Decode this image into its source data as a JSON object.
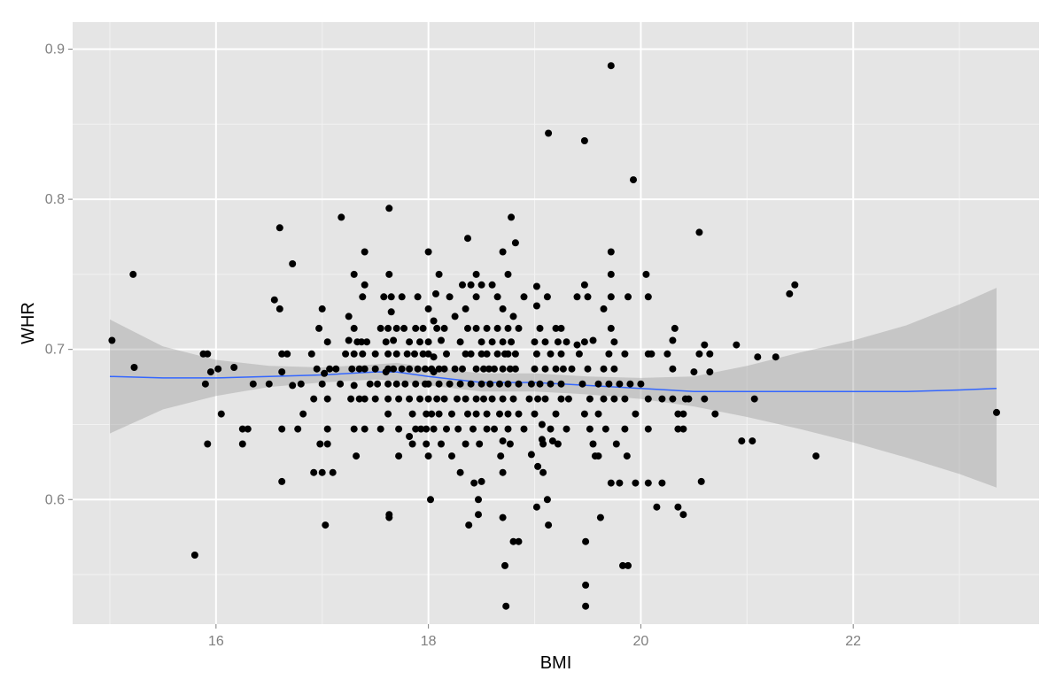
{
  "chart_data": {
    "type": "scatter",
    "title": "",
    "xlabel": "BMI",
    "ylabel": "WHR",
    "xlim": [
      14.65,
      23.75
    ],
    "ylim": [
      0.517,
      0.918
    ],
    "x_ticks": [
      16,
      18,
      20,
      22
    ],
    "x_tick_labels": [
      "16",
      "18",
      "20",
      "22"
    ],
    "y_ticks": [
      0.6,
      0.7,
      0.8,
      0.9
    ],
    "y_tick_labels": [
      "0.6",
      "0.7",
      "0.8",
      "0.9"
    ],
    "grid": true,
    "legend": "none",
    "colors": {
      "panel_background": "#e5e5e5",
      "grid_major": "#ffffff",
      "grid_minor": "#f2f2f2",
      "points": "#000000",
      "smooth_line": "#3366ff",
      "confidence_band": "#999999"
    },
    "smooth": {
      "x": [
        15.0,
        15.5,
        16.0,
        16.5,
        17.0,
        17.5,
        17.7,
        18.0,
        18.5,
        19.0,
        19.5,
        20.0,
        20.5,
        21.0,
        21.5,
        22.0,
        22.5,
        23.0,
        23.35
      ],
      "y": [
        0.682,
        0.681,
        0.681,
        0.682,
        0.683,
        0.685,
        0.685,
        0.682,
        0.678,
        0.678,
        0.676,
        0.674,
        0.672,
        0.672,
        0.672,
        0.672,
        0.672,
        0.673,
        0.674
      ],
      "lower": [
        0.644,
        0.66,
        0.669,
        0.675,
        0.678,
        0.68,
        0.679,
        0.676,
        0.672,
        0.672,
        0.67,
        0.667,
        0.662,
        0.655,
        0.647,
        0.638,
        0.628,
        0.617,
        0.608
      ],
      "upper": [
        0.72,
        0.702,
        0.693,
        0.689,
        0.688,
        0.69,
        0.691,
        0.688,
        0.684,
        0.684,
        0.682,
        0.681,
        0.682,
        0.689,
        0.698,
        0.706,
        0.716,
        0.73,
        0.741
      ]
    },
    "points": [
      [
        15.02,
        0.706
      ],
      [
        15.22,
        0.75
      ],
      [
        15.23,
        0.688
      ],
      [
        15.8,
        0.563
      ],
      [
        15.88,
        0.697
      ],
      [
        15.9,
        0.677
      ],
      [
        15.92,
        0.697
      ],
      [
        15.92,
        0.637
      ],
      [
        15.95,
        0.685
      ],
      [
        16.02,
        0.687
      ],
      [
        16.05,
        0.657
      ],
      [
        16.17,
        0.688
      ],
      [
        16.25,
        0.647
      ],
      [
        16.25,
        0.637
      ],
      [
        16.3,
        0.647
      ],
      [
        16.35,
        0.677
      ],
      [
        16.5,
        0.677
      ],
      [
        16.55,
        0.733
      ],
      [
        16.6,
        0.781
      ],
      [
        16.6,
        0.727
      ],
      [
        16.62,
        0.697
      ],
      [
        16.62,
        0.685
      ],
      [
        16.62,
        0.647
      ],
      [
        16.62,
        0.612
      ],
      [
        16.67,
        0.697
      ],
      [
        16.72,
        0.757
      ],
      [
        16.72,
        0.676
      ],
      [
        16.77,
        0.647
      ],
      [
        16.8,
        0.677
      ],
      [
        16.82,
        0.657
      ],
      [
        16.9,
        0.697
      ],
      [
        16.92,
        0.667
      ],
      [
        16.92,
        0.618
      ],
      [
        16.95,
        0.687
      ],
      [
        16.97,
        0.714
      ],
      [
        16.98,
        0.637
      ],
      [
        17.0,
        0.727
      ],
      [
        17.0,
        0.677
      ],
      [
        17.0,
        0.618
      ],
      [
        17.02,
        0.684
      ],
      [
        17.03,
        0.583
      ],
      [
        17.05,
        0.705
      ],
      [
        17.05,
        0.667
      ],
      [
        17.05,
        0.647
      ],
      [
        17.05,
        0.637
      ],
      [
        17.07,
        0.687
      ],
      [
        17.1,
        0.618
      ],
      [
        17.13,
        0.687
      ],
      [
        17.17,
        0.677
      ],
      [
        17.18,
        0.788
      ],
      [
        17.22,
        0.697
      ],
      [
        17.25,
        0.722
      ],
      [
        17.25,
        0.706
      ],
      [
        17.27,
        0.667
      ],
      [
        17.28,
        0.687
      ],
      [
        17.3,
        0.75
      ],
      [
        17.3,
        0.714
      ],
      [
        17.3,
        0.697
      ],
      [
        17.3,
        0.676
      ],
      [
        17.3,
        0.647
      ],
      [
        17.32,
        0.629
      ],
      [
        17.33,
        0.705
      ],
      [
        17.35,
        0.687
      ],
      [
        17.35,
        0.667
      ],
      [
        17.37,
        0.705
      ],
      [
        17.38,
        0.735
      ],
      [
        17.38,
        0.697
      ],
      [
        17.4,
        0.765
      ],
      [
        17.4,
        0.743
      ],
      [
        17.4,
        0.687
      ],
      [
        17.4,
        0.667
      ],
      [
        17.4,
        0.647
      ],
      [
        17.42,
        0.705
      ],
      [
        17.45,
        0.677
      ],
      [
        17.5,
        0.697
      ],
      [
        17.5,
        0.687
      ],
      [
        17.5,
        0.667
      ],
      [
        17.52,
        0.677
      ],
      [
        17.55,
        0.714
      ],
      [
        17.55,
        0.647
      ],
      [
        17.58,
        0.735
      ],
      [
        17.6,
        0.705
      ],
      [
        17.6,
        0.685
      ],
      [
        17.62,
        0.714
      ],
      [
        17.62,
        0.697
      ],
      [
        17.62,
        0.687
      ],
      [
        17.62,
        0.677
      ],
      [
        17.62,
        0.667
      ],
      [
        17.62,
        0.657
      ],
      [
        17.63,
        0.794
      ],
      [
        17.63,
        0.75
      ],
      [
        17.63,
        0.59
      ],
      [
        17.63,
        0.588
      ],
      [
        17.65,
        0.735
      ],
      [
        17.65,
        0.725
      ],
      [
        17.67,
        0.706
      ],
      [
        17.67,
        0.687
      ],
      [
        17.7,
        0.714
      ],
      [
        17.7,
        0.697
      ],
      [
        17.7,
        0.677
      ],
      [
        17.72,
        0.667
      ],
      [
        17.72,
        0.647
      ],
      [
        17.72,
        0.629
      ],
      [
        17.75,
        0.735
      ],
      [
        17.75,
        0.687
      ],
      [
        17.77,
        0.714
      ],
      [
        17.78,
        0.677
      ],
      [
        17.8,
        0.697
      ],
      [
        17.82,
        0.705
      ],
      [
        17.82,
        0.687
      ],
      [
        17.82,
        0.667
      ],
      [
        17.82,
        0.642
      ],
      [
        17.85,
        0.637
      ],
      [
        17.85,
        0.657
      ],
      [
        17.87,
        0.697
      ],
      [
        17.88,
        0.714
      ],
      [
        17.88,
        0.677
      ],
      [
        17.88,
        0.647
      ],
      [
        17.9,
        0.735
      ],
      [
        17.9,
        0.687
      ],
      [
        17.92,
        0.667
      ],
      [
        17.92,
        0.705
      ],
      [
        17.93,
        0.647
      ],
      [
        17.95,
        0.714
      ],
      [
        17.95,
        0.697
      ],
      [
        17.97,
        0.687
      ],
      [
        17.97,
        0.677
      ],
      [
        17.98,
        0.657
      ],
      [
        17.98,
        0.647
      ],
      [
        17.98,
        0.637
      ],
      [
        18.0,
        0.765
      ],
      [
        18.0,
        0.727
      ],
      [
        18.0,
        0.705
      ],
      [
        18.0,
        0.697
      ],
      [
        18.0,
        0.677
      ],
      [
        18.0,
        0.667
      ],
      [
        18.0,
        0.629
      ],
      [
        18.02,
        0.6
      ],
      [
        18.03,
        0.687
      ],
      [
        18.03,
        0.657
      ],
      [
        18.05,
        0.719
      ],
      [
        18.05,
        0.695
      ],
      [
        18.05,
        0.685
      ],
      [
        18.05,
        0.647
      ],
      [
        18.07,
        0.737
      ],
      [
        18.08,
        0.714
      ],
      [
        18.08,
        0.667
      ],
      [
        18.1,
        0.75
      ],
      [
        18.1,
        0.687
      ],
      [
        18.1,
        0.677
      ],
      [
        18.1,
        0.657
      ],
      [
        18.12,
        0.706
      ],
      [
        18.12,
        0.637
      ],
      [
        18.15,
        0.714
      ],
      [
        18.15,
        0.687
      ],
      [
        18.15,
        0.667
      ],
      [
        18.17,
        0.697
      ],
      [
        18.17,
        0.647
      ],
      [
        18.2,
        0.735
      ],
      [
        18.2,
        0.677
      ],
      [
        18.22,
        0.657
      ],
      [
        18.22,
        0.629
      ],
      [
        18.25,
        0.722
      ],
      [
        18.25,
        0.687
      ],
      [
        18.27,
        0.667
      ],
      [
        18.28,
        0.647
      ],
      [
        18.3,
        0.705
      ],
      [
        18.3,
        0.677
      ],
      [
        18.3,
        0.618
      ],
      [
        18.32,
        0.743
      ],
      [
        18.32,
        0.687
      ],
      [
        18.35,
        0.727
      ],
      [
        18.35,
        0.697
      ],
      [
        18.35,
        0.667
      ],
      [
        18.35,
        0.637
      ],
      [
        18.37,
        0.774
      ],
      [
        18.37,
        0.714
      ],
      [
        18.37,
        0.657
      ],
      [
        18.38,
        0.583
      ],
      [
        18.4,
        0.743
      ],
      [
        18.4,
        0.697
      ],
      [
        18.4,
        0.677
      ],
      [
        18.42,
        0.647
      ],
      [
        18.43,
        0.611
      ],
      [
        18.45,
        0.75
      ],
      [
        18.45,
        0.735
      ],
      [
        18.45,
        0.714
      ],
      [
        18.45,
        0.687
      ],
      [
        18.45,
        0.667
      ],
      [
        18.45,
        0.657
      ],
      [
        18.47,
        0.59
      ],
      [
        18.47,
        0.6
      ],
      [
        18.48,
        0.637
      ],
      [
        18.5,
        0.743
      ],
      [
        18.5,
        0.705
      ],
      [
        18.5,
        0.697
      ],
      [
        18.5,
        0.677
      ],
      [
        18.5,
        0.612
      ],
      [
        18.52,
        0.687
      ],
      [
        18.52,
        0.667
      ],
      [
        18.55,
        0.714
      ],
      [
        18.55,
        0.697
      ],
      [
        18.55,
        0.657
      ],
      [
        18.55,
        0.647
      ],
      [
        18.57,
        0.687
      ],
      [
        18.58,
        0.677
      ],
      [
        18.6,
        0.743
      ],
      [
        18.6,
        0.705
      ],
      [
        18.6,
        0.667
      ],
      [
        18.62,
        0.687
      ],
      [
        18.62,
        0.647
      ],
      [
        18.65,
        0.735
      ],
      [
        18.65,
        0.714
      ],
      [
        18.65,
        0.697
      ],
      [
        18.67,
        0.677
      ],
      [
        18.67,
        0.657
      ],
      [
        18.68,
        0.629
      ],
      [
        18.7,
        0.765
      ],
      [
        18.7,
        0.727
      ],
      [
        18.7,
        0.705
      ],
      [
        18.7,
        0.687
      ],
      [
        18.7,
        0.667
      ],
      [
        18.7,
        0.639
      ],
      [
        18.7,
        0.618
      ],
      [
        18.7,
        0.588
      ],
      [
        18.72,
        0.556
      ],
      [
        18.72,
        0.697
      ],
      [
        18.73,
        0.529
      ],
      [
        18.75,
        0.75
      ],
      [
        18.75,
        0.714
      ],
      [
        18.75,
        0.697
      ],
      [
        18.75,
        0.677
      ],
      [
        18.75,
        0.657
      ],
      [
        18.75,
        0.647
      ],
      [
        18.77,
        0.687
      ],
      [
        18.77,
        0.637
      ],
      [
        18.78,
        0.788
      ],
      [
        18.78,
        0.705
      ],
      [
        18.8,
        0.722
      ],
      [
        18.8,
        0.667
      ],
      [
        18.8,
        0.572
      ],
      [
        18.82,
        0.771
      ],
      [
        18.82,
        0.697
      ],
      [
        18.82,
        0.687
      ],
      [
        18.85,
        0.572
      ],
      [
        18.85,
        0.714
      ],
      [
        18.85,
        0.677
      ],
      [
        18.85,
        0.657
      ],
      [
        18.9,
        0.735
      ],
      [
        18.9,
        0.647
      ],
      [
        18.95,
        0.667
      ],
      [
        18.97,
        0.63
      ],
      [
        18.97,
        0.677
      ],
      [
        19.0,
        0.705
      ],
      [
        19.0,
        0.687
      ],
      [
        19.0,
        0.657
      ],
      [
        19.02,
        0.742
      ],
      [
        19.02,
        0.729
      ],
      [
        19.02,
        0.697
      ],
      [
        19.02,
        0.595
      ],
      [
        19.03,
        0.667
      ],
      [
        19.03,
        0.622
      ],
      [
        19.05,
        0.714
      ],
      [
        19.05,
        0.677
      ],
      [
        19.07,
        0.65
      ],
      [
        19.07,
        0.64
      ],
      [
        19.08,
        0.637
      ],
      [
        19.08,
        0.618
      ],
      [
        19.1,
        0.705
      ],
      [
        19.1,
        0.687
      ],
      [
        19.1,
        0.667
      ],
      [
        19.12,
        0.735
      ],
      [
        19.12,
        0.6
      ],
      [
        19.13,
        0.844
      ],
      [
        19.13,
        0.583
      ],
      [
        19.15,
        0.697
      ],
      [
        19.15,
        0.677
      ],
      [
        19.15,
        0.647
      ],
      [
        19.17,
        0.639
      ],
      [
        19.2,
        0.714
      ],
      [
        19.2,
        0.687
      ],
      [
        19.2,
        0.657
      ],
      [
        19.22,
        0.705
      ],
      [
        19.22,
        0.637
      ],
      [
        19.25,
        0.714
      ],
      [
        19.25,
        0.697
      ],
      [
        19.25,
        0.677
      ],
      [
        19.25,
        0.667
      ],
      [
        19.27,
        0.687
      ],
      [
        19.3,
        0.705
      ],
      [
        19.3,
        0.647
      ],
      [
        19.32,
        0.667
      ],
      [
        19.35,
        0.687
      ],
      [
        19.4,
        0.735
      ],
      [
        19.4,
        0.703
      ],
      [
        19.42,
        0.697
      ],
      [
        19.45,
        0.677
      ],
      [
        19.47,
        0.839
      ],
      [
        19.47,
        0.743
      ],
      [
        19.47,
        0.705
      ],
      [
        19.47,
        0.657
      ],
      [
        19.48,
        0.543
      ],
      [
        19.48,
        0.529
      ],
      [
        19.48,
        0.572
      ],
      [
        19.5,
        0.735
      ],
      [
        19.5,
        0.687
      ],
      [
        19.52,
        0.667
      ],
      [
        19.52,
        0.647
      ],
      [
        19.55,
        0.706
      ],
      [
        19.55,
        0.637
      ],
      [
        19.57,
        0.629
      ],
      [
        19.6,
        0.677
      ],
      [
        19.6,
        0.657
      ],
      [
        19.6,
        0.629
      ],
      [
        19.62,
        0.588
      ],
      [
        19.65,
        0.727
      ],
      [
        19.65,
        0.687
      ],
      [
        19.65,
        0.667
      ],
      [
        19.67,
        0.647
      ],
      [
        19.7,
        0.697
      ],
      [
        19.7,
        0.677
      ],
      [
        19.72,
        0.889
      ],
      [
        19.72,
        0.765
      ],
      [
        19.72,
        0.75
      ],
      [
        19.72,
        0.735
      ],
      [
        19.72,
        0.714
      ],
      [
        19.72,
        0.611
      ],
      [
        19.75,
        0.705
      ],
      [
        19.75,
        0.687
      ],
      [
        19.75,
        0.667
      ],
      [
        19.77,
        0.637
      ],
      [
        19.8,
        0.677
      ],
      [
        19.8,
        0.611
      ],
      [
        19.83,
        0.556
      ],
      [
        19.85,
        0.697
      ],
      [
        19.85,
        0.667
      ],
      [
        19.85,
        0.647
      ],
      [
        19.87,
        0.629
      ],
      [
        19.88,
        0.556
      ],
      [
        19.88,
        0.735
      ],
      [
        19.9,
        0.677
      ],
      [
        19.93,
        0.813
      ],
      [
        19.95,
        0.611
      ],
      [
        19.95,
        0.657
      ],
      [
        20.0,
        0.677
      ],
      [
        20.05,
        0.75
      ],
      [
        20.07,
        0.735
      ],
      [
        20.07,
        0.697
      ],
      [
        20.07,
        0.667
      ],
      [
        20.07,
        0.647
      ],
      [
        20.07,
        0.611
      ],
      [
        20.1,
        0.697
      ],
      [
        20.15,
        0.595
      ],
      [
        20.2,
        0.611
      ],
      [
        20.2,
        0.667
      ],
      [
        20.25,
        0.697
      ],
      [
        20.3,
        0.706
      ],
      [
        20.3,
        0.687
      ],
      [
        20.3,
        0.667
      ],
      [
        20.32,
        0.714
      ],
      [
        20.35,
        0.657
      ],
      [
        20.35,
        0.647
      ],
      [
        20.35,
        0.595
      ],
      [
        20.4,
        0.59
      ],
      [
        20.4,
        0.657
      ],
      [
        20.4,
        0.647
      ],
      [
        20.42,
        0.667
      ],
      [
        20.45,
        0.667
      ],
      [
        20.5,
        0.685
      ],
      [
        20.55,
        0.778
      ],
      [
        20.55,
        0.697
      ],
      [
        20.57,
        0.612
      ],
      [
        20.6,
        0.703
      ],
      [
        20.6,
        0.667
      ],
      [
        20.65,
        0.685
      ],
      [
        20.65,
        0.697
      ],
      [
        20.7,
        0.657
      ],
      [
        20.9,
        0.703
      ],
      [
        20.95,
        0.639
      ],
      [
        21.05,
        0.639
      ],
      [
        21.07,
        0.667
      ],
      [
        21.1,
        0.695
      ],
      [
        21.27,
        0.695
      ],
      [
        21.4,
        0.737
      ],
      [
        21.45,
        0.743
      ],
      [
        21.65,
        0.629
      ],
      [
        23.35,
        0.658
      ]
    ]
  }
}
